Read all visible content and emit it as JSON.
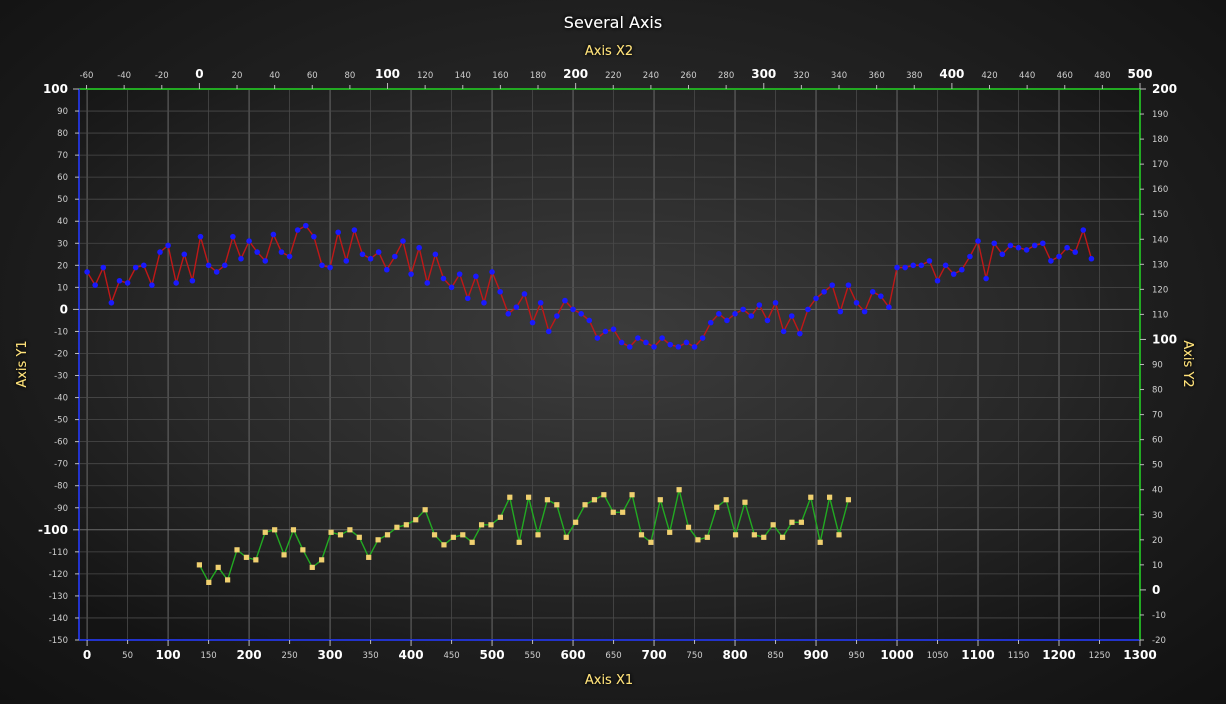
{
  "chart_data": {
    "type": "line",
    "title": "Several Axis",
    "axes": {
      "x1": {
        "label": "Axis X1",
        "range": [
          -10,
          1300
        ],
        "major_ticks": [
          0,
          100,
          200,
          300,
          400,
          500,
          600,
          700,
          800,
          900,
          1000,
          1100,
          1200,
          1300
        ],
        "minor_ticks": [
          50,
          150,
          250,
          350,
          450,
          550,
          650,
          750,
          850,
          950,
          1050,
          1150,
          1250
        ],
        "color": "#2233cc"
      },
      "x2": {
        "label": "Axis X2",
        "range": [
          -64,
          500
        ],
        "major_ticks": [
          0,
          100,
          200,
          300,
          400,
          500
        ],
        "minor_ticks": [
          -60,
          -40,
          -20,
          20,
          40,
          60,
          80,
          120,
          140,
          160,
          180,
          220,
          240,
          260,
          280,
          320,
          340,
          360,
          380,
          420,
          440,
          460,
          480
        ],
        "color": "#22aa22"
      },
      "y1": {
        "label": "Axis Y1",
        "range": [
          -150,
          100
        ],
        "major_ticks": [
          100,
          0,
          -100
        ],
        "minor_ticks": [
          90,
          80,
          70,
          60,
          50,
          40,
          30,
          20,
          10,
          -10,
          -20,
          -30,
          -40,
          -50,
          -60,
          -70,
          -80,
          -90,
          -110,
          -120,
          -130,
          -140,
          -150
        ],
        "color": "#2233cc"
      },
      "y2": {
        "label": "Axis Y2",
        "range": [
          -20,
          200
        ],
        "major_ticks": [
          200,
          100,
          0
        ],
        "minor_ticks": [
          190,
          180,
          170,
          160,
          150,
          140,
          130,
          120,
          110,
          90,
          80,
          70,
          60,
          50,
          40,
          30,
          20,
          10,
          -10,
          -20
        ],
        "color": "#22aa22"
      }
    },
    "grid": true,
    "series": [
      {
        "axes": [
          "x1",
          "y1"
        ],
        "line_color": "#c01818",
        "marker_color": "#1a1aff",
        "marker": "circle",
        "x": [
          0,
          10,
          20,
          30,
          40,
          50,
          60,
          70,
          80,
          90,
          100,
          110,
          120,
          130,
          140,
          150,
          160,
          170,
          180,
          190,
          200,
          210,
          220,
          230,
          240,
          250,
          260,
          270,
          280,
          290,
          300,
          310,
          320,
          330,
          340,
          350,
          360,
          370,
          380,
          390,
          400,
          410,
          420,
          430,
          440,
          450,
          460,
          470,
          480,
          490,
          500,
          510,
          520,
          530,
          540,
          550,
          560,
          570,
          580,
          590,
          600,
          610,
          620,
          630,
          640,
          650,
          660,
          670,
          680,
          690,
          700,
          710,
          720,
          730,
          740,
          750,
          760,
          770,
          780,
          790,
          800,
          810,
          820,
          830,
          840,
          850,
          860,
          870,
          880,
          890,
          900,
          910,
          920,
          930,
          940,
          950,
          960,
          970,
          980,
          990,
          1000,
          1010,
          1020,
          1030,
          1040,
          1050,
          1060,
          1070,
          1080,
          1090,
          1100,
          1110,
          1120,
          1130,
          1140,
          1150,
          1160,
          1170,
          1180,
          1190,
          1200,
          1210,
          1220,
          1230,
          1240
        ],
        "y": [
          17,
          11,
          19,
          3,
          13,
          12,
          19,
          20,
          11,
          26,
          29,
          12,
          25,
          13,
          33,
          20,
          17,
          20,
          33,
          23,
          31,
          26,
          22,
          34,
          26,
          24,
          36,
          38,
          33,
          20,
          19,
          35,
          22,
          36,
          25,
          23,
          26,
          18,
          24,
          31,
          16,
          28,
          12,
          25,
          14,
          10,
          16,
          5,
          15,
          3,
          17,
          8,
          -2,
          1,
          7,
          -6,
          3,
          -10,
          -3,
          4,
          0,
          -2,
          -5,
          -13,
          -10,
          -9,
          -15,
          -17,
          -13,
          -15,
          -17,
          -13,
          -16,
          -17,
          -15,
          -17,
          -13,
          -6,
          -2,
          -5,
          -2,
          0,
          -3,
          2,
          -5,
          3,
          -10,
          -3,
          -11,
          0,
          5,
          8,
          11,
          -1,
          11,
          3,
          -1,
          8,
          6,
          1,
          19,
          19,
          20,
          20,
          22,
          13,
          20,
          16,
          18,
          24,
          31,
          14,
          30,
          25,
          29,
          28,
          27,
          29,
          30,
          22,
          24,
          28,
          26,
          36,
          23
        ],
        "marker_xs": [
          0,
          10,
          20,
          30,
          40,
          50,
          60,
          70,
          80,
          90,
          100,
          110,
          120,
          130,
          140,
          150,
          160,
          170,
          180,
          190,
          200,
          210,
          220,
          230,
          240,
          250,
          260,
          270,
          280,
          290,
          300,
          310,
          320,
          330,
          340,
          350,
          360,
          370,
          380,
          390,
          400,
          410,
          420,
          430,
          440,
          450,
          460,
          470,
          480,
          490,
          500,
          510,
          520,
          530,
          540,
          550,
          560,
          570,
          580,
          590,
          600,
          610,
          620,
          630,
          640,
          650,
          660,
          670,
          680,
          690,
          700,
          710,
          720,
          730,
          740,
          750,
          760,
          770,
          780,
          790,
          800,
          810,
          820,
          830,
          840,
          850,
          860,
          870,
          880,
          890,
          900,
          910,
          920,
          930,
          940,
          950,
          960,
          970,
          980,
          990,
          1000,
          1010,
          1020,
          1030,
          1040,
          1050,
          1060,
          1070,
          1080,
          1090,
          1100,
          1110,
          1120,
          1130,
          1140,
          1150,
          1160,
          1170,
          1180,
          1190,
          1200,
          1210,
          1220,
          1230,
          1240
        ]
      },
      {
        "axes": [
          "x2",
          "y2"
        ],
        "line_color": "#22aa22",
        "marker_color": "#f0d070",
        "marker": "square",
        "x": [
          0,
          5,
          10,
          15,
          20,
          25,
          30,
          35,
          40,
          45,
          50,
          55,
          60,
          65,
          70,
          75,
          80,
          85,
          90,
          95,
          100,
          105,
          110,
          115,
          120,
          125,
          130,
          135,
          140,
          145,
          150,
          155,
          160,
          165,
          170,
          175,
          180,
          185,
          190,
          195,
          200,
          205,
          210,
          215,
          220,
          225,
          230,
          235,
          240,
          245,
          250,
          255,
          260,
          265,
          270,
          275,
          280,
          285,
          290,
          295,
          300,
          305,
          310,
          315,
          320,
          325,
          330,
          335,
          340,
          345
        ],
        "y": [
          10,
          3,
          9,
          4,
          16,
          13,
          12,
          23,
          24,
          14,
          24,
          16,
          9,
          12,
          23,
          22,
          24,
          21,
          13,
          20,
          22,
          25,
          26,
          28,
          32,
          22,
          18,
          21,
          22,
          19,
          26,
          26,
          29,
          37,
          19,
          37,
          22,
          36,
          34,
          21,
          27,
          34,
          36,
          38,
          31,
          31,
          38,
          22,
          19,
          36,
          23,
          40,
          25,
          20,
          21,
          33,
          36,
          22,
          35,
          22,
          21,
          26,
          21,
          27,
          27,
          37,
          19,
          37,
          22,
          36
        ]
      }
    ]
  }
}
